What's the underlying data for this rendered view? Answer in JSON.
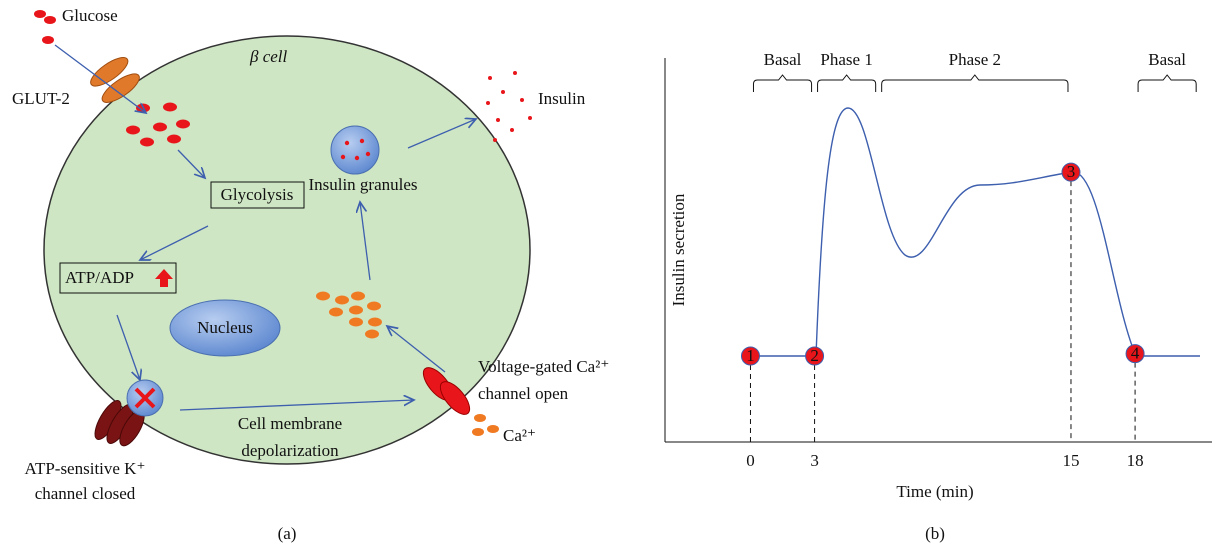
{
  "panel_a": {
    "label": "(a)",
    "cell_label": "β cell",
    "glucose": "Glucose",
    "glut2": "GLUT-2",
    "glycolysis": "Glycolysis",
    "atp_adp": "ATP/ADP",
    "nucleus": "Nucleus",
    "insulin_granules": "Insulin granules",
    "insulin": "Insulin",
    "k_channel": [
      "ATP-sensitive K⁺",
      "channel closed"
    ],
    "depolarization": [
      "Cell membrane",
      "depolarization"
    ],
    "ca_channel": [
      "Voltage-gated Ca²⁺",
      "channel open"
    ],
    "calcium": "Ca²⁺"
  },
  "panel_b": {
    "label": "(b)",
    "chart_data": {
      "type": "line",
      "xlabel": "Time (min)",
      "ylabel": "Insulin secretion",
      "xlim": [
        -4,
        21.6
      ],
      "xticks": [
        0,
        3,
        15,
        18
      ],
      "phases": [
        {
          "label": "Basal",
          "start": 0,
          "end": 3
        },
        {
          "label": "Phase 1",
          "start": 3,
          "end": 6
        },
        {
          "label": "Phase 2",
          "start": 6,
          "end": 15
        },
        {
          "label": "Basal",
          "start": 18,
          "end": 21
        }
      ],
      "markers": [
        {
          "label": "1",
          "x": 0
        },
        {
          "label": "2",
          "x": 3
        },
        {
          "label": "3",
          "x": 15
        },
        {
          "label": "4",
          "x": 18
        }
      ]
    }
  }
}
